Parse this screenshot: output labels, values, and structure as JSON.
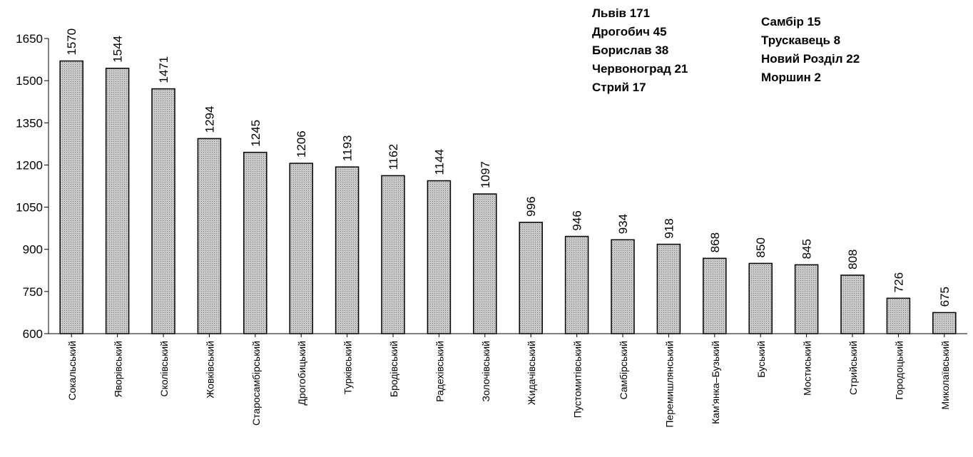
{
  "chart_data": {
    "type": "bar",
    "title": "",
    "xlabel": "",
    "ylabel": "",
    "ylim": [
      600,
      1650
    ],
    "yticks": [
      600,
      750,
      900,
      1050,
      1200,
      1350,
      1500,
      1650
    ],
    "grid": false,
    "bar_color": "#c8c8c8",
    "categories": [
      "Сокальський",
      "Яворівський",
      "Сколівський",
      "Жовківський",
      "Старосамбірський",
      "Дрогобицький",
      "Турківський",
      "Бродівський",
      "Радехівський",
      "Золочівський",
      "Жидачівський",
      "Пустомитівський",
      "Самбірський",
      "Перемишлянський",
      "Кам'янка–Бузький",
      "Буський",
      "Мостиський",
      "Стрийський",
      "Городоцький",
      "Миколаївський"
    ],
    "values": [
      1570,
      1544,
      1471,
      1294,
      1245,
      1206,
      1193,
      1162,
      1144,
      1097,
      996,
      946,
      934,
      918,
      868,
      850,
      845,
      808,
      726,
      675
    ]
  },
  "annotations": {
    "left": [
      "Львів  171",
      "Дрогобич  45",
      "Борислав  38",
      "Червоноград  21",
      "Стрий  17"
    ],
    "right": [
      "Самбір  15",
      "Трускавець  8",
      "Новий Розділ  22",
      "Моршин  2"
    ]
  }
}
